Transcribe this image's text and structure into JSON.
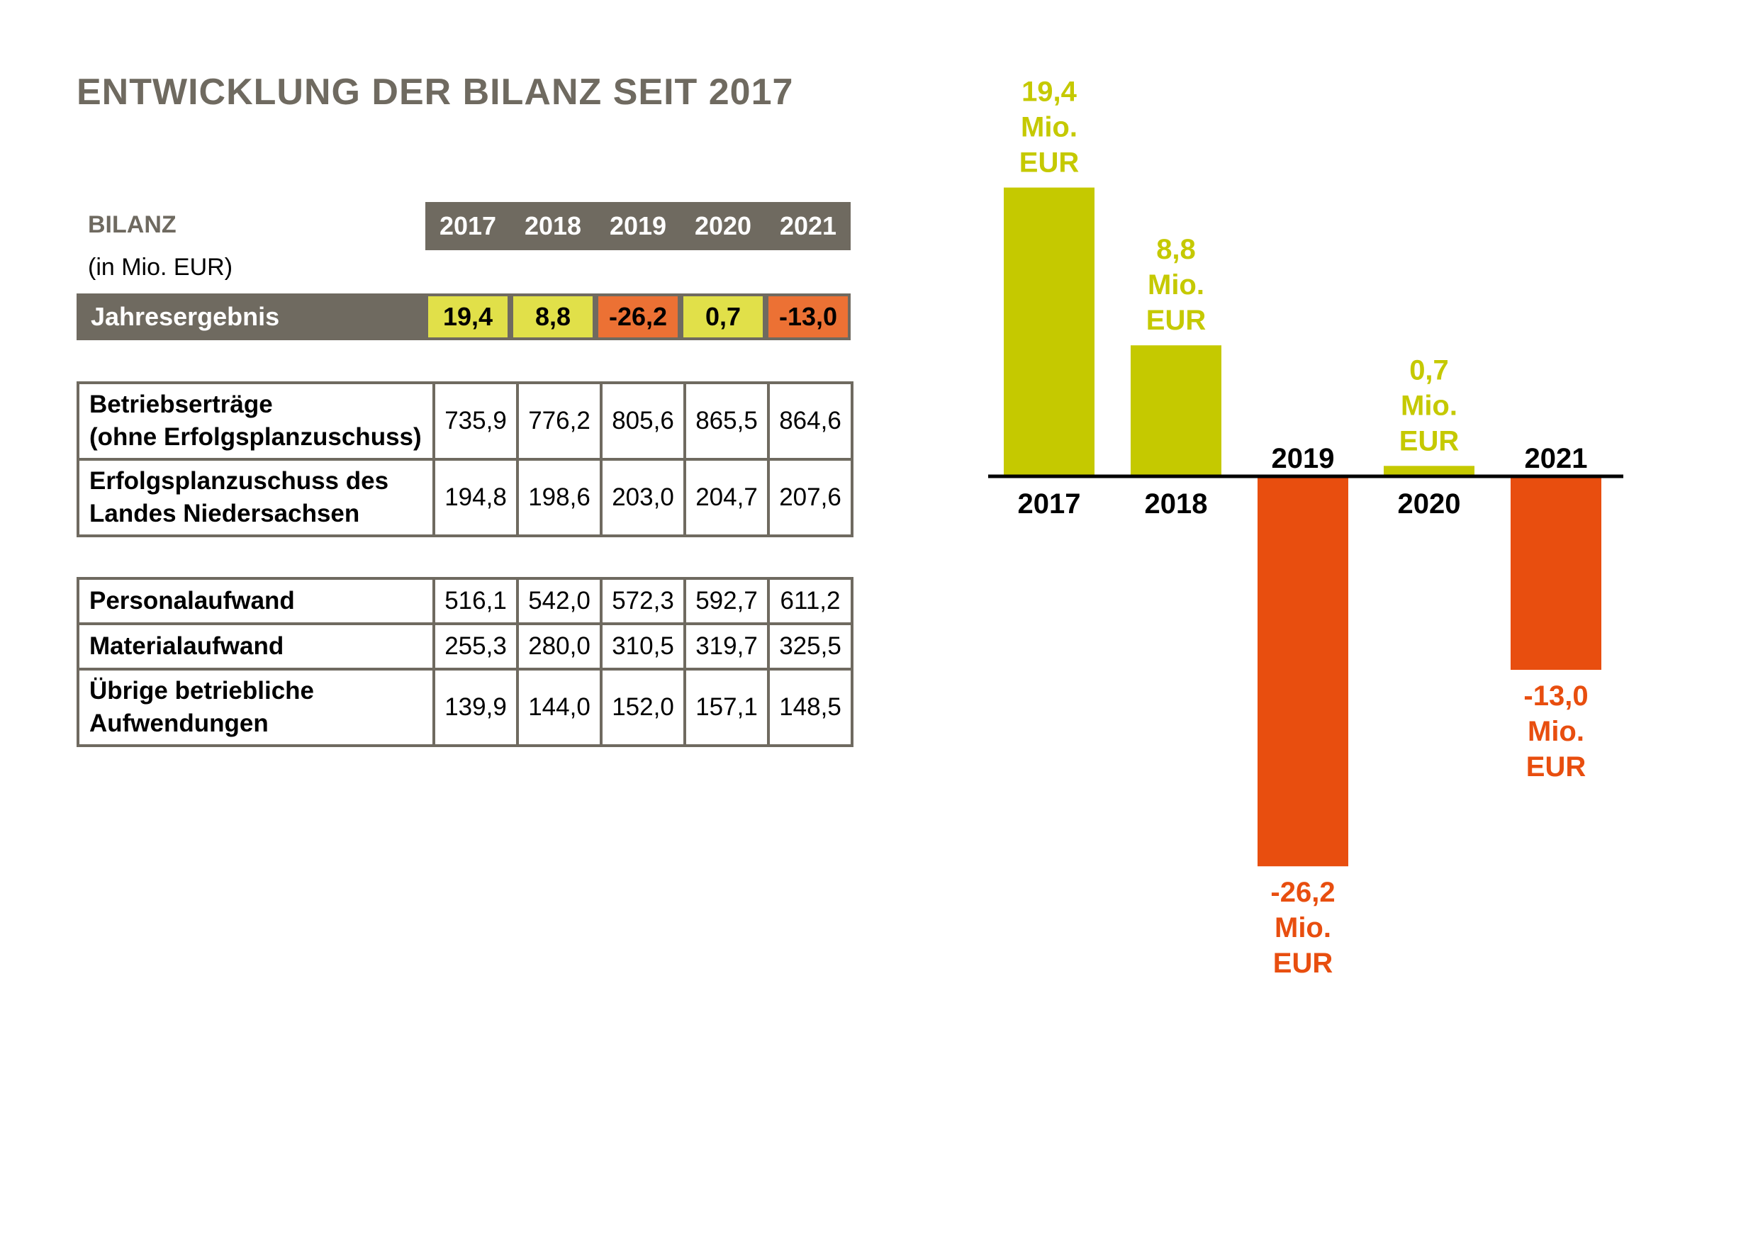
{
  "title": "ENTWICKLUNG DER BILANZ SEIT 2017",
  "table": {
    "label": "BILANZ",
    "unit": "(in Mio. EUR)",
    "years": [
      "2017",
      "2018",
      "2019",
      "2020",
      "2021"
    ],
    "result": {
      "label": "Jahresergebnis",
      "values": [
        "19,4",
        "8,8",
        "-26,2",
        "0,7",
        "-13,0"
      ],
      "colors": [
        "#e1e049",
        "#e1e049",
        "#ec7134",
        "#e1e049",
        "#ec7134"
      ]
    },
    "groups": [
      {
        "rows": [
          {
            "label_lines": [
              "Betriebserträge",
              "(ohne Erfolgsplanzuschuss)"
            ],
            "values": [
              "735,9",
              "776,2",
              "805,6",
              "865,5",
              "864,6"
            ]
          },
          {
            "label_lines": [
              "Erfolgsplanzuschuss des",
              "Landes Niedersachsen"
            ],
            "values": [
              "194,8",
              "198,6",
              "203,0",
              "204,7",
              "207,6"
            ]
          }
        ]
      },
      {
        "rows": [
          {
            "label_lines": [
              "Personalaufwand"
            ],
            "values": [
              "516,1",
              "542,0",
              "572,3",
              "592,7",
              "611,2"
            ]
          },
          {
            "label_lines": [
              "Materialaufwand"
            ],
            "values": [
              "255,3",
              "280,0",
              "310,5",
              "319,7",
              "325,5"
            ]
          },
          {
            "label_lines": [
              "Übrige betriebliche",
              "Aufwendungen"
            ],
            "values": [
              "139,9",
              "144,0",
              "152,0",
              "157,1",
              "148,5"
            ]
          }
        ]
      }
    ]
  },
  "chart_data": {
    "type": "bar",
    "categories": [
      "2017",
      "2018",
      "2019",
      "2020",
      "2021"
    ],
    "values": [
      19.4,
      8.8,
      -26.2,
      0.7,
      -13.0
    ],
    "data_labels": [
      [
        "19,4",
        "Mio.",
        "EUR"
      ],
      [
        "8,8",
        "Mio.",
        "EUR"
      ],
      [
        "-26,2",
        "Mio.",
        "EUR"
      ],
      [
        "0,7",
        "Mio.",
        "EUR"
      ],
      [
        "-13,0",
        "Mio.",
        "EUR"
      ]
    ],
    "positive_color": "#c5c900",
    "negative_color": "#e84e0f",
    "grid": false
  }
}
